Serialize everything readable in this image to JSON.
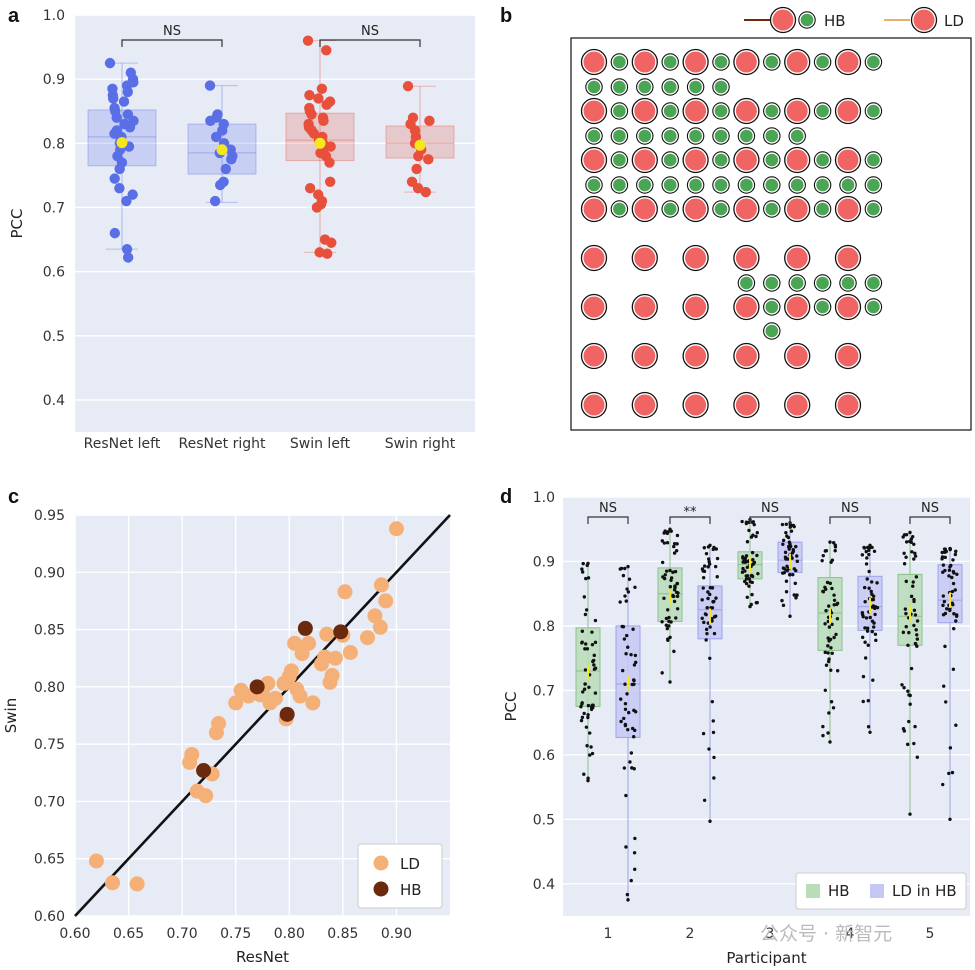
{
  "panels": {
    "a": "a",
    "b": "b",
    "c": "c",
    "d": "d"
  },
  "watermark": "公众号 · 新智元",
  "colors": {
    "plot_bg": "#e6ebf5",
    "resnet": "#5a6ee6",
    "swin": "#e8503c",
    "mean": "#f5e61e",
    "hb_green": "#4aa555",
    "ld_red": "#f06464",
    "ld_scatter": "#f5b077",
    "hb_scatter": "#6b2a0e",
    "d_hb_box": "#b8ddb8",
    "d_ld_box": "#c5c8f5"
  },
  "chart_data": [
    {
      "panel": "a",
      "type": "box-strip",
      "ylabel": "PCC",
      "xlabel": "",
      "ylim": [
        0.35,
        1.0
      ],
      "yticks": [
        "0.4",
        "0.5",
        "0.6",
        "0.7",
        "0.8",
        "0.9",
        "1.0"
      ],
      "categories": [
        "ResNet left",
        "ResNet right",
        "Swin left",
        "Swin right"
      ],
      "series": [
        {
          "category": "ResNet left",
          "family": "resnet",
          "box": [
            0.765,
            0.81,
            0.852
          ],
          "whisker": [
            0.635,
            0.925
          ],
          "mean": 0.801,
          "points": [
            0.925,
            0.91,
            0.9,
            0.895,
            0.89,
            0.885,
            0.88,
            0.875,
            0.87,
            0.865,
            0.855,
            0.85,
            0.845,
            0.84,
            0.835,
            0.83,
            0.825,
            0.82,
            0.815,
            0.81,
            0.805,
            0.8,
            0.795,
            0.79,
            0.78,
            0.77,
            0.76,
            0.745,
            0.73,
            0.72,
            0.71,
            0.66,
            0.635,
            0.622
          ]
        },
        {
          "category": "ResNet right",
          "family": "resnet",
          "box": [
            0.752,
            0.785,
            0.83
          ],
          "whisker": [
            0.708,
            0.89
          ],
          "mean": 0.79,
          "points": [
            0.89,
            0.845,
            0.84,
            0.835,
            0.83,
            0.82,
            0.81,
            0.8,
            0.795,
            0.79,
            0.785,
            0.78,
            0.775,
            0.76,
            0.74,
            0.735,
            0.71
          ]
        },
        {
          "category": "Swin left",
          "family": "swin",
          "box": [
            0.773,
            0.805,
            0.847
          ],
          "whisker": [
            0.63,
            0.96
          ],
          "mean": 0.8,
          "points": [
            0.96,
            0.945,
            0.885,
            0.875,
            0.87,
            0.865,
            0.86,
            0.855,
            0.85,
            0.845,
            0.84,
            0.835,
            0.83,
            0.825,
            0.82,
            0.815,
            0.81,
            0.805,
            0.8,
            0.795,
            0.79,
            0.785,
            0.78,
            0.77,
            0.74,
            0.73,
            0.72,
            0.71,
            0.705,
            0.7,
            0.65,
            0.645,
            0.63,
            0.628
          ]
        },
        {
          "category": "Swin right",
          "family": "swin",
          "box": [
            0.777,
            0.8,
            0.827
          ],
          "whisker": [
            0.724,
            0.889
          ],
          "mean": 0.797,
          "points": [
            0.889,
            0.84,
            0.835,
            0.83,
            0.82,
            0.81,
            0.8,
            0.795,
            0.79,
            0.78,
            0.775,
            0.76,
            0.74,
            0.73,
            0.724
          ]
        }
      ],
      "annotations": [
        {
          "text": "NS",
          "from": "ResNet left",
          "to": "ResNet right"
        },
        {
          "text": "NS",
          "from": "Swin left",
          "to": "Swin right"
        }
      ]
    },
    {
      "panel": "b",
      "type": "electrode-layout",
      "legend": [
        {
          "label": "HB",
          "line_color": "#6b2a0e",
          "markers": [
            "large-red",
            "small-green"
          ]
        },
        {
          "label": "LD",
          "line_color": "#e8b06a",
          "markers": [
            "large-red"
          ]
        }
      ],
      "rows": [
        {
          "kind": "L",
          "cols": [
            0,
            1,
            2,
            3,
            4,
            5,
            6,
            7,
            8,
            9,
            10,
            11
          ]
        },
        {
          "kind": "S",
          "cols": [
            0,
            1,
            2,
            3,
            4,
            5
          ]
        },
        {
          "kind": "L",
          "cols": [
            0,
            1,
            2,
            3,
            4,
            5,
            6,
            7,
            8,
            9,
            10,
            11
          ]
        },
        {
          "kind": "S",
          "cols": [
            0,
            1,
            2,
            3,
            4,
            5,
            6,
            7,
            8
          ]
        },
        {
          "kind": "L",
          "cols": [
            0,
            1,
            2,
            3,
            4,
            5,
            6,
            7,
            8,
            9,
            10,
            11
          ]
        },
        {
          "kind": "S",
          "cols": [
            0,
            1,
            2,
            3,
            4,
            5,
            6,
            7,
            8,
            9,
            10,
            11
          ]
        },
        {
          "kind": "L",
          "cols": [
            0,
            1,
            2,
            3,
            4,
            5,
            6,
            7,
            8,
            9,
            10,
            11
          ]
        },
        {
          "kind": "L",
          "cols": [
            0,
            2,
            4,
            6,
            8,
            10
          ]
        },
        {
          "kind": "S",
          "cols": [
            6,
            7,
            8,
            9,
            10,
            11
          ]
        },
        {
          "kind": "L",
          "cols": [
            0,
            2,
            4,
            6,
            7,
            8,
            9,
            10,
            11
          ]
        },
        {
          "kind": "S",
          "cols": [
            7
          ]
        },
        {
          "kind": "L",
          "cols": [
            0,
            2,
            4,
            6,
            8,
            10
          ]
        },
        {
          "kind": "L",
          "cols": [
            0,
            2,
            4,
            6,
            8,
            10
          ]
        }
      ]
    },
    {
      "panel": "c",
      "type": "scatter",
      "xlabel": "ResNet",
      "ylabel": "Swin",
      "xlim": [
        0.6,
        0.95
      ],
      "ylim": [
        0.6,
        0.95
      ],
      "xticks": [
        "0.60",
        "0.65",
        "0.70",
        "0.75",
        "0.80",
        "0.85",
        "0.90"
      ],
      "yticks": [
        "0.60",
        "0.65",
        "0.70",
        "0.75",
        "0.80",
        "0.85",
        "0.90",
        "0.95"
      ],
      "diagonal": true,
      "legend_position": "bottom-right",
      "series": [
        {
          "name": "LD",
          "points": [
            [
              0.62,
              0.648
            ],
            [
              0.635,
              0.629
            ],
            [
              0.658,
              0.628
            ],
            [
              0.707,
              0.734
            ],
            [
              0.709,
              0.741
            ],
            [
              0.714,
              0.709
            ],
            [
              0.722,
              0.705
            ],
            [
              0.728,
              0.724
            ],
            [
              0.732,
              0.76
            ],
            [
              0.734,
              0.768
            ],
            [
              0.75,
              0.786
            ],
            [
              0.755,
              0.797
            ],
            [
              0.762,
              0.792
            ],
            [
              0.773,
              0.793
            ],
            [
              0.775,
              0.796
            ],
            [
              0.78,
              0.803
            ],
            [
              0.782,
              0.786
            ],
            [
              0.787,
              0.79
            ],
            [
              0.795,
              0.803
            ],
            [
              0.797,
              0.772
            ],
            [
              0.8,
              0.809
            ],
            [
              0.802,
              0.814
            ],
            [
              0.805,
              0.838
            ],
            [
              0.807,
              0.798
            ],
            [
              0.81,
              0.792
            ],
            [
              0.812,
              0.829
            ],
            [
              0.818,
              0.838
            ],
            [
              0.822,
              0.786
            ],
            [
              0.83,
              0.82
            ],
            [
              0.833,
              0.826
            ],
            [
              0.835,
              0.846
            ],
            [
              0.838,
              0.804
            ],
            [
              0.84,
              0.81
            ],
            [
              0.843,
              0.825
            ],
            [
              0.85,
              0.845
            ],
            [
              0.852,
              0.883
            ],
            [
              0.857,
              0.83
            ],
            [
              0.873,
              0.843
            ],
            [
              0.88,
              0.862
            ],
            [
              0.885,
              0.852
            ],
            [
              0.886,
              0.889
            ],
            [
              0.89,
              0.875
            ],
            [
              0.9,
              0.938
            ]
          ]
        },
        {
          "name": "HB",
          "points": [
            [
              0.72,
              0.727
            ],
            [
              0.77,
              0.8
            ],
            [
              0.798,
              0.776
            ],
            [
              0.815,
              0.851
            ],
            [
              0.848,
              0.848
            ]
          ]
        }
      ]
    },
    {
      "panel": "d",
      "type": "box-strip",
      "xlabel": "Participant",
      "ylabel": "PCC",
      "ylim": [
        0.35,
        1.0
      ],
      "yticks": [
        "0.4",
        "0.5",
        "0.6",
        "0.7",
        "0.8",
        "0.9",
        "1.0"
      ],
      "categories": [
        "1",
        "2",
        "3",
        "4",
        "5"
      ],
      "legend_position": "bottom-right",
      "legend": [
        "HB",
        "LD in HB"
      ],
      "series": [
        {
          "participant": "1",
          "name": "HB",
          "box": [
            0.675,
            0.73,
            0.797
          ],
          "whisker": [
            0.56,
            0.897
          ],
          "mean": 0.728
        },
        {
          "participant": "1",
          "name": "LD in HB",
          "box": [
            0.627,
            0.71,
            0.8
          ],
          "whisker": [
            0.375,
            0.892
          ],
          "mean": 0.712
        },
        {
          "participant": "2",
          "name": "HB",
          "box": [
            0.807,
            0.85,
            0.89
          ],
          "whisker": [
            0.713,
            0.95
          ],
          "mean": 0.845
        },
        {
          "participant": "2",
          "name": "LD in HB",
          "box": [
            0.78,
            0.825,
            0.862
          ],
          "whisker": [
            0.497,
            0.925
          ],
          "mean": 0.815
        },
        {
          "participant": "3",
          "name": "HB",
          "box": [
            0.873,
            0.895,
            0.915
          ],
          "whisker": [
            0.83,
            0.965
          ],
          "mean": 0.895
        },
        {
          "participant": "3",
          "name": "LD in HB",
          "box": [
            0.883,
            0.902,
            0.93
          ],
          "whisker": [
            0.815,
            0.96
          ],
          "mean": 0.9
        },
        {
          "participant": "4",
          "name": "HB",
          "box": [
            0.762,
            0.82,
            0.875
          ],
          "whisker": [
            0.62,
            0.93
          ],
          "mean": 0.815
        },
        {
          "participant": "4",
          "name": "LD in HB",
          "box": [
            0.793,
            0.83,
            0.877
          ],
          "whisker": [
            0.635,
            0.925
          ],
          "mean": 0.832
        },
        {
          "participant": "5",
          "name": "HB",
          "box": [
            0.77,
            0.815,
            0.88
          ],
          "whisker": [
            0.508,
            0.945
          ],
          "mean": 0.82
        },
        {
          "participant": "5",
          "name": "LD in HB",
          "box": [
            0.805,
            0.84,
            0.895
          ],
          "whisker": [
            0.5,
            0.92
          ],
          "mean": 0.84
        }
      ],
      "annotations": [
        {
          "participant": "1",
          "text": "NS"
        },
        {
          "participant": "2",
          "text": "**"
        },
        {
          "participant": "3",
          "text": "NS"
        },
        {
          "participant": "4",
          "text": "NS"
        },
        {
          "participant": "5",
          "text": "NS"
        }
      ]
    }
  ]
}
